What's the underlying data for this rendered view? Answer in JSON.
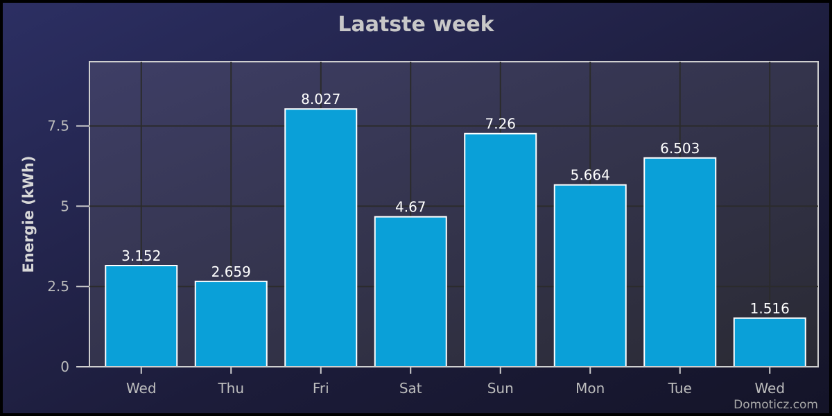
{
  "chart_data": {
    "type": "bar",
    "title": "Laatste week",
    "xlabel": "",
    "ylabel": "Energie (kWh)",
    "categories": [
      "Wed",
      "Thu",
      "Fri",
      "Sat",
      "Sun",
      "Mon",
      "Tue",
      "Wed"
    ],
    "values": [
      3.152,
      2.659,
      8.027,
      4.67,
      7.26,
      5.664,
      6.503,
      1.516
    ],
    "data_labels": [
      "3.152",
      "2.659",
      "8.027",
      "4.67",
      "7.26",
      "5.664",
      "6.503",
      "1.516"
    ],
    "ylim": [
      0,
      9.5
    ],
    "yticks": [
      0,
      2.5,
      5,
      7.5
    ],
    "ytick_labels": [
      "0",
      "2.5",
      "5",
      "7.5"
    ],
    "grid": true,
    "legend": "none",
    "colors": {
      "bar": "#0aa0d8",
      "bar_border": "#ffffff",
      "background_top_left": "#2c2f63",
      "background_bottom_right": "#141428",
      "plot_area": "#343452",
      "grid": "#2b2b2b",
      "title": "#c8c8c8",
      "axis_text": "#bdbdbd"
    }
  },
  "credit": "Domoticz.com"
}
